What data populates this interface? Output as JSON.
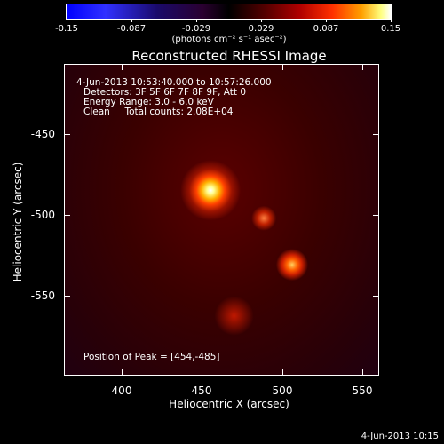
{
  "colorbar": {
    "ticks": [
      "-0.15",
      "-0.087",
      "-0.029",
      "0.029",
      "0.087",
      "0.15"
    ],
    "units": "(photons cm⁻² s⁻¹ asec⁻²)"
  },
  "title": "Reconstructed RHESSI Image",
  "info": {
    "time_range": "4-Jun-2013 10:53:40.000 to 10:57:26.000",
    "detectors": "Detectors: 3F 5F 6F 7F 8F 9F, Att 0",
    "energy": "Energy Range: 3.0 - 6.0 keV",
    "clean": "Clean     Total counts: 2.08E+04",
    "peak": "Position of Peak = [454,-485]"
  },
  "axes": {
    "xlabel": "Heliocentric X (arcsec)",
    "ylabel": "Heliocentric Y (arcsec)",
    "xticks": [
      "400",
      "450",
      "500",
      "550"
    ],
    "yticks": [
      "-450",
      "-500",
      "-550"
    ]
  },
  "timestamp": "4-Jun-2013 10:15"
}
